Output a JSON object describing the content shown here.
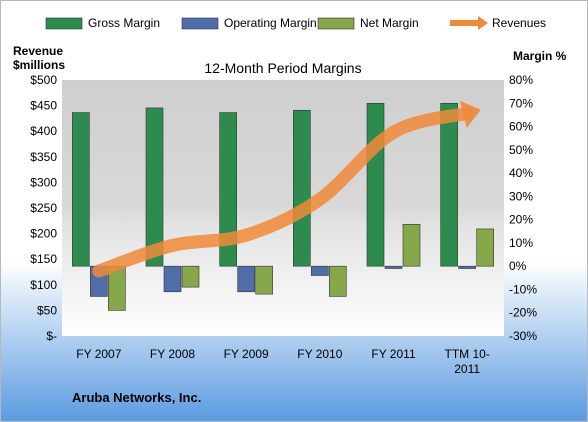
{
  "chart_data": {
    "type": "bar",
    "title": "12-Month Period Margins",
    "company": "Aruba Networks, Inc.",
    "left_axis_title": [
      "Revenue",
      "$millions"
    ],
    "right_axis_title": "Margin %",
    "categories": [
      [
        "FY 2007"
      ],
      [
        "FY 2008"
      ],
      [
        "FY 2009"
      ],
      [
        "FY 2010"
      ],
      [
        "FY 2011"
      ],
      [
        "TTM 10-",
        "2011"
      ]
    ],
    "left_axis": {
      "min": 0,
      "max": 500,
      "step": 50,
      "labels": [
        "$-",
        "$50",
        "$100",
        "$150",
        "$200",
        "$250",
        "$300",
        "$350",
        "$400",
        "$450",
        "$500"
      ]
    },
    "right_axis": {
      "min": -30,
      "max": 80,
      "step": 10,
      "labels": [
        "-30%",
        "-20%",
        "-10%",
        "0%",
        "10%",
        "20%",
        "30%",
        "40%",
        "50%",
        "60%",
        "70%",
        "80%"
      ]
    },
    "series": [
      {
        "name": "Gross Margin",
        "axis": "right",
        "color": "#2e8b4e",
        "values": [
          66,
          68,
          66,
          67,
          70,
          70
        ]
      },
      {
        "name": "Operating Margin",
        "axis": "right",
        "color": "#4f6ea8",
        "values": [
          -13,
          -11,
          -11,
          -4,
          -1,
          -1
        ]
      },
      {
        "name": "Net Margin",
        "axis": "right",
        "color": "#86a84a",
        "values": [
          -19,
          -9,
          -12,
          -13,
          18,
          16
        ]
      },
      {
        "name": "Revenues",
        "axis": "left",
        "type": "line",
        "color": "#ee8a3a",
        "values": [
          127,
          177,
          197,
          267,
          398,
          435
        ]
      }
    ],
    "grid": false,
    "legend": "top"
  }
}
